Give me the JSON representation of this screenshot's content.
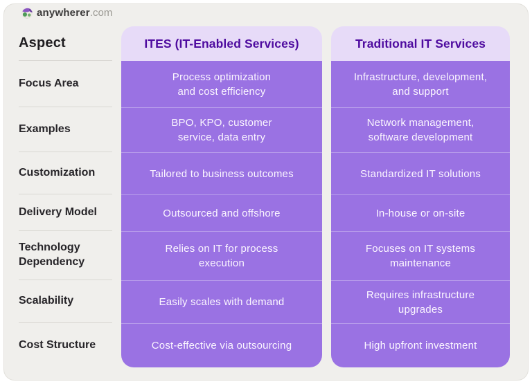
{
  "logo": {
    "name": "anywherer",
    "tld": ".com"
  },
  "table": {
    "aspect_header": "Aspect",
    "columns": [
      {
        "title": "ITES (IT-Enabled Services)"
      },
      {
        "title": "Traditional IT Services"
      }
    ],
    "rows": [
      {
        "aspect": "Focus Area",
        "ites": "Process optimization\nand cost efficiency",
        "traditional": "Infrastructure, development,\nand support"
      },
      {
        "aspect": "Examples",
        "ites": "BPO, KPO, customer\nservice, data entry",
        "traditional": "Network management,\nsoftware development"
      },
      {
        "aspect": "Customization",
        "ites": "Tailored to business outcomes",
        "traditional": "Standardized IT solutions"
      },
      {
        "aspect": "Delivery Model",
        "ites": "Outsourced and offshore",
        "traditional": "In-house or on-site"
      },
      {
        "aspect": "Technology\nDependency",
        "ites": "Relies on IT for process\nexecution",
        "traditional": "Focuses on IT systems\nmaintenance"
      },
      {
        "aspect": "Scalability",
        "ites": "Easily scales with demand",
        "traditional": "Requires infrastructure\nupgrades"
      },
      {
        "aspect": "Cost Structure",
        "ites": "Cost-effective via outsourcing",
        "traditional": "High upfront investment"
      }
    ]
  },
  "colors": {
    "card_background": "#f0efec",
    "column_body": "#9a72e3",
    "column_header_background": "#e7dbf8",
    "column_header_text": "#4e0b9f",
    "cell_text": "#fbf6ff",
    "aspect_text": "#262428"
  }
}
